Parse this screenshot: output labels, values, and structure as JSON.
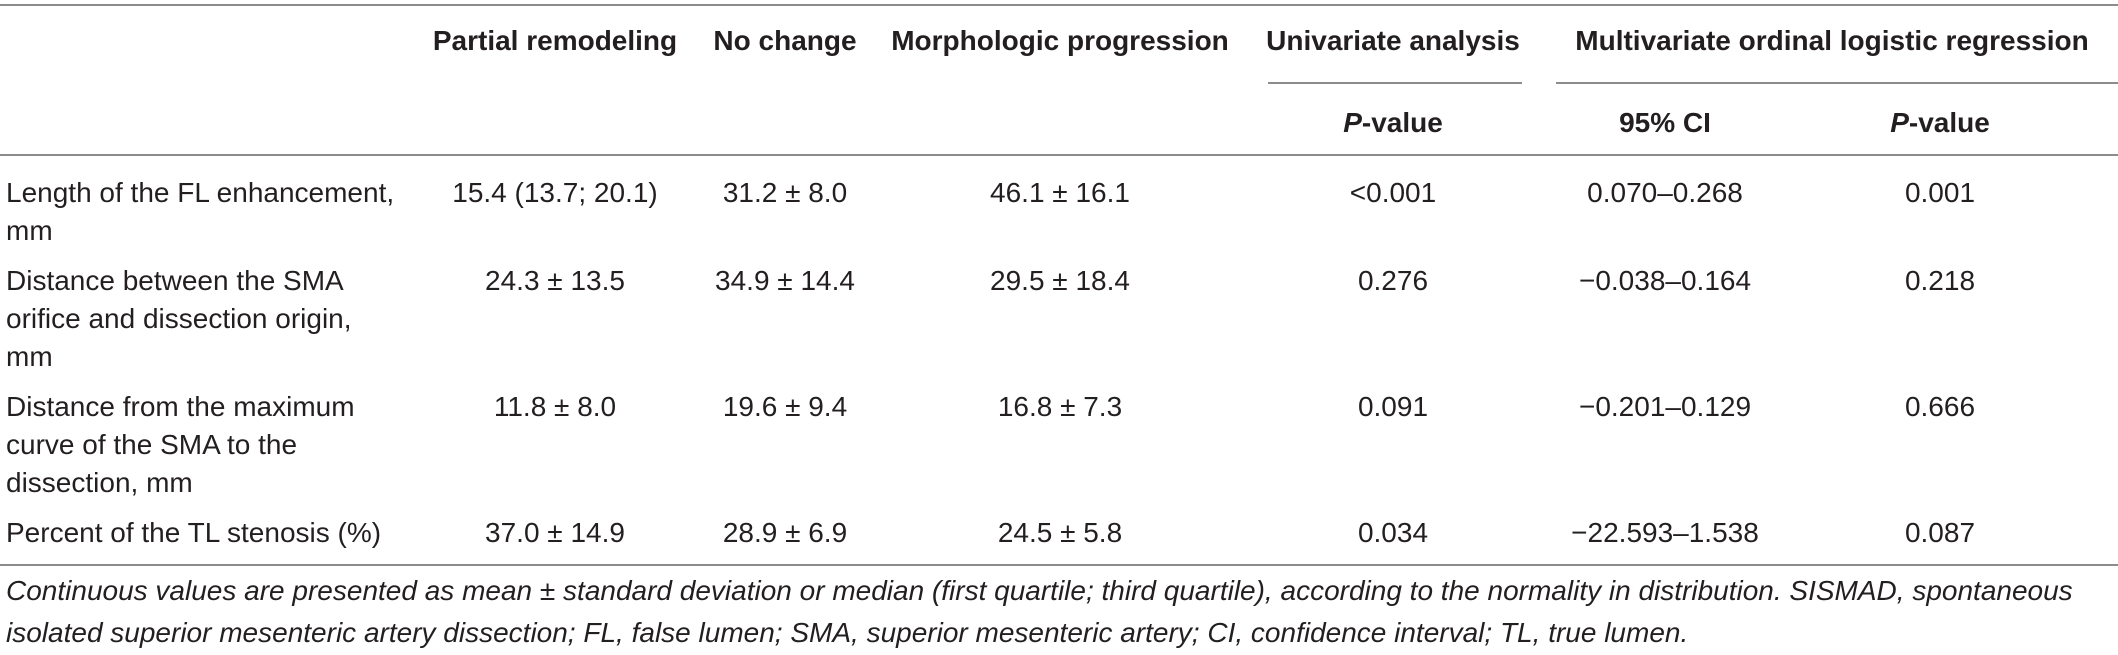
{
  "table": {
    "headers": {
      "partial_remodeling": "Partial remodeling",
      "no_change": "No change",
      "morphologic_progression": "Morphologic progression",
      "univariate_analysis": "Univariate analysis",
      "multivariate": "Multivariate ordinal logistic regression"
    },
    "subheaders": {
      "univariate_p_italic": "P",
      "univariate_p_rest": "-value",
      "ci": "95% CI",
      "multivariate_p_italic": "P",
      "multivariate_p_rest": "-value"
    },
    "rows": [
      {
        "label": "Length of the FL enhancement, mm",
        "partial_remodeling": "15.4 (13.7; 20.1)",
        "no_change": "31.2 ± 8.0",
        "morphologic_progression": "46.1 ± 16.1",
        "univariate_p": "<0.001",
        "ci": "0.070–0.268",
        "multivariate_p": "0.001"
      },
      {
        "label": "Distance between the SMA orifice and dissection origin, mm",
        "partial_remodeling": "24.3 ± 13.5",
        "no_change": "34.9 ± 14.4",
        "morphologic_progression": "29.5 ± 18.4",
        "univariate_p": "0.276",
        "ci": "−0.038–0.164",
        "multivariate_p": "0.218"
      },
      {
        "label": "Distance from the maximum curve of the SMA to the dissection, mm",
        "partial_remodeling": "11.8 ± 8.0",
        "no_change": "19.6 ± 9.4",
        "morphologic_progression": "16.8 ± 7.3",
        "univariate_p": "0.091",
        "ci": "−0.201–0.129",
        "multivariate_p": "0.666"
      },
      {
        "label": "Percent of the TL stenosis (%)",
        "partial_remodeling": "37.0 ± 14.9",
        "no_change": "28.9 ± 6.9",
        "morphologic_progression": "24.5 ± 5.8",
        "univariate_p": "0.034",
        "ci": "−22.593–1.538",
        "multivariate_p": "0.087"
      }
    ],
    "footnote": "Continuous values are presented as mean ± standard deviation or median (first quartile; third quartile), according to the normality in distribution. SISMAD, spontaneous isolated superior mesenteric artery dissection; FL, false lumen; SMA, superior mesenteric artery; CI, confidence interval; TL, true lumen."
  }
}
